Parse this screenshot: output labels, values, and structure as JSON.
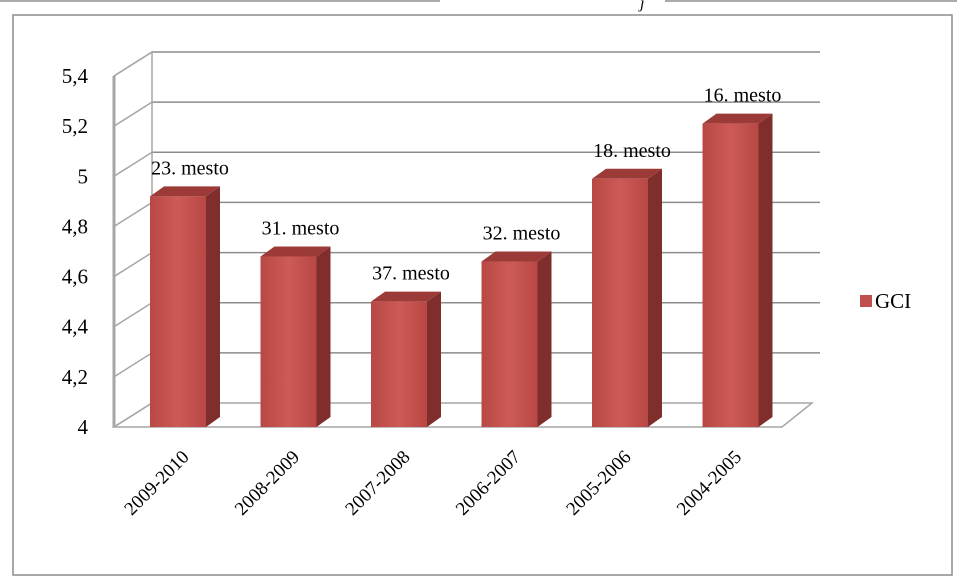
{
  "chart_data": {
    "type": "bar",
    "categories": [
      "2009-2010",
      "2008-2009",
      "2007-2008",
      "2006-2007",
      "2005-2006",
      "2004-2005"
    ],
    "series": [
      {
        "name": "GCI",
        "values": [
          4.92,
          4.68,
          4.5,
          4.66,
          4.99,
          5.21
        ],
        "color": "#c0504d"
      }
    ],
    "data_labels": [
      "23. mesto",
      "31. mesto",
      "37. mesto",
      "32. mesto",
      "18. mesto",
      "16. mesto"
    ],
    "y_ticks": [
      "4",
      "4,2",
      "4,4",
      "4,6",
      "4,8",
      "5",
      "5,2",
      "5,4"
    ],
    "ylim": [
      4,
      5.4
    ],
    "grid": true,
    "legend_position": "right",
    "three_d": true
  }
}
